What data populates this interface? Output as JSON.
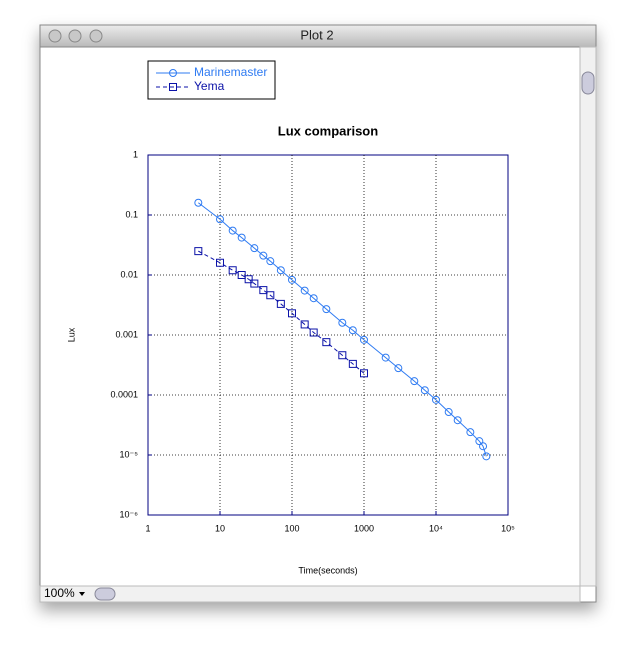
{
  "window": {
    "title": "Plot 2",
    "zoom": "100%"
  },
  "chart_data": {
    "type": "line",
    "title": "Lux comparison",
    "xlabel": "Time(seconds)",
    "ylabel": "Lux",
    "xscale": "log",
    "yscale": "log",
    "grid": true,
    "legend": "upper left",
    "xlim": [
      1,
      100000
    ],
    "xticks": [
      1,
      10,
      100,
      1000,
      {
        "value": 10000,
        "label": "10⁴"
      },
      {
        "value": 100000,
        "label": "10⁵"
      }
    ],
    "ylim": [
      1e-06,
      1
    ],
    "yticks": [
      {
        "value": 1e-06,
        "label": "10⁻⁶"
      },
      {
        "value": 1e-05,
        "label": "10⁻⁵"
      },
      0.0001,
      0.001,
      0.01,
      0.1,
      1
    ],
    "series": [
      {
        "name": "Marinemaster",
        "color": "#2f7bf2",
        "marker": "circle",
        "linestyle": "solid",
        "x": [
          5,
          10,
          15,
          20,
          30,
          40,
          50,
          70,
          100,
          150,
          200,
          300,
          500,
          700,
          1000,
          2000,
          3000,
          5000,
          7000,
          10000,
          15000,
          20000,
          30000,
          40000,
          45000,
          50000
        ],
        "values": [
          0.16,
          0.085,
          0.055,
          0.042,
          0.028,
          0.021,
          0.017,
          0.012,
          0.0083,
          0.0055,
          0.0041,
          0.0027,
          0.0016,
          0.0012,
          0.00083,
          0.00042,
          0.00028,
          0.00017,
          0.00012,
          8.3e-05,
          5.2e-05,
          3.8e-05,
          2.4e-05,
          1.7e-05,
          1.4e-05,
          9.5e-06
        ]
      },
      {
        "name": "Yema",
        "color": "#0b12a8",
        "marker": "square",
        "linestyle": "dashed",
        "x": [
          5,
          10,
          15,
          20,
          25,
          30,
          40,
          50,
          70,
          100,
          150,
          200,
          300,
          500,
          700,
          1000
        ],
        "values": [
          0.025,
          0.016,
          0.012,
          0.01,
          0.0085,
          0.0072,
          0.0056,
          0.0046,
          0.0033,
          0.0023,
          0.0015,
          0.0011,
          0.00076,
          0.00046,
          0.00033,
          0.00023
        ]
      }
    ]
  }
}
